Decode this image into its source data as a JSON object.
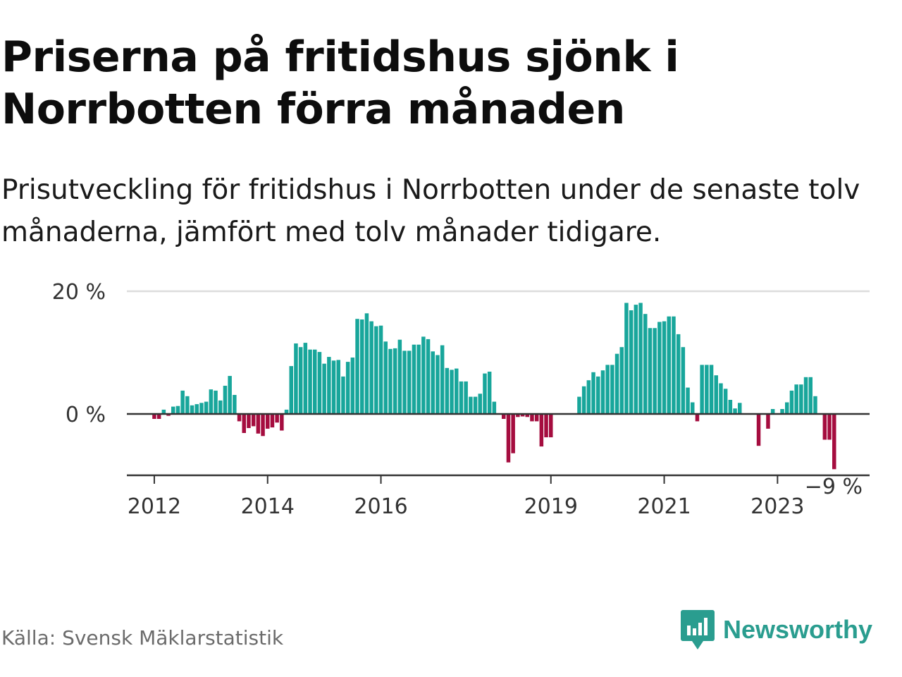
{
  "title": "Priserna på fritidshus sjönk i Norrbotten förra månaden",
  "subtitle": "Prisutveckling för fritidshus i Norrbotten under de senaste tolv månaderna, jämfört med tolv månader tidigare.",
  "source": "Källa: Svensk Mäklarstatistik",
  "brand": "Newsworthy",
  "colors": {
    "positive": "#18a69b",
    "negative": "#a50d3f",
    "brand": "#2a9d8f",
    "grid": "#dddddd",
    "baseline": "#333333"
  },
  "chart_data": {
    "type": "bar",
    "title": "Priserna på fritidshus sjönk i Norrbotten förra månaden",
    "xlabel": "",
    "ylabel": "",
    "ylim": [
      -10,
      20
    ],
    "y_ticks": [
      {
        "value": 0,
        "label": "0 %"
      },
      {
        "value": 20,
        "label": "20 %"
      }
    ],
    "x_start": "2011-07",
    "x_ticks": [
      {
        "label": "2012",
        "index": 6
      },
      {
        "label": "2014",
        "index": 30
      },
      {
        "label": "2016",
        "index": 54
      },
      {
        "label": "2019",
        "index": 90
      },
      {
        "label": "2021",
        "index": 114
      },
      {
        "label": "2023",
        "index": 138
      }
    ],
    "last_label": "−9 %",
    "series": [
      {
        "name": "Prisutveckling (%)",
        "values": [
          0,
          0,
          0,
          0,
          0,
          0,
          -0.8,
          -0.8,
          0.7,
          -0.3,
          1.2,
          1.3,
          3.8,
          2.9,
          1.4,
          1.6,
          1.8,
          2.0,
          4.0,
          3.8,
          2.2,
          4.6,
          6.2,
          3.1,
          -1.2,
          -3.1,
          -2.3,
          -2.0,
          -3.2,
          -3.6,
          -2.4,
          -2.2,
          -1.4,
          -2.7,
          0.7,
          7.8,
          11.5,
          10.9,
          11.6,
          10.5,
          10.5,
          10.1,
          8.2,
          9.3,
          8.7,
          8.8,
          6.1,
          8.5,
          9.2,
          15.5,
          15.4,
          16.4,
          15.1,
          14.3,
          14.4,
          11.8,
          10.6,
          10.7,
          12.1,
          10.3,
          10.3,
          11.3,
          11.3,
          12.6,
          12.2,
          10.2,
          9.6,
          11.2,
          7.5,
          7.2,
          7.4,
          5.3,
          5.3,
          2.8,
          2.8,
          3.3,
          6.6,
          6.9,
          2.0,
          0,
          -0.8,
          -7.9,
          -6.4,
          -0.5,
          -0.4,
          -0.5,
          -1.2,
          -1.2,
          -5.3,
          -3.8,
          -3.8,
          0,
          0,
          0,
          0,
          0,
          2.8,
          4.5,
          5.5,
          6.8,
          6.1,
          7.1,
          8.0,
          8.0,
          9.8,
          10.9,
          18.1,
          16.9,
          17.8,
          18.1,
          16.3,
          14.0,
          14.0,
          15.0,
          15.1,
          15.9,
          15.9,
          13.0,
          10.9,
          4.3,
          1.9,
          -1.2,
          8.0,
          8.0,
          8.0,
          6.3,
          5.0,
          4.1,
          2.3,
          0.9,
          1.8,
          0,
          0,
          0,
          -5.2,
          0,
          -2.4,
          0.8,
          0,
          0.8,
          1.9,
          3.8,
          4.8,
          4.8,
          6.0,
          6.0,
          2.9,
          0,
          -4.2,
          -4.2,
          -9.0
        ]
      }
    ]
  }
}
